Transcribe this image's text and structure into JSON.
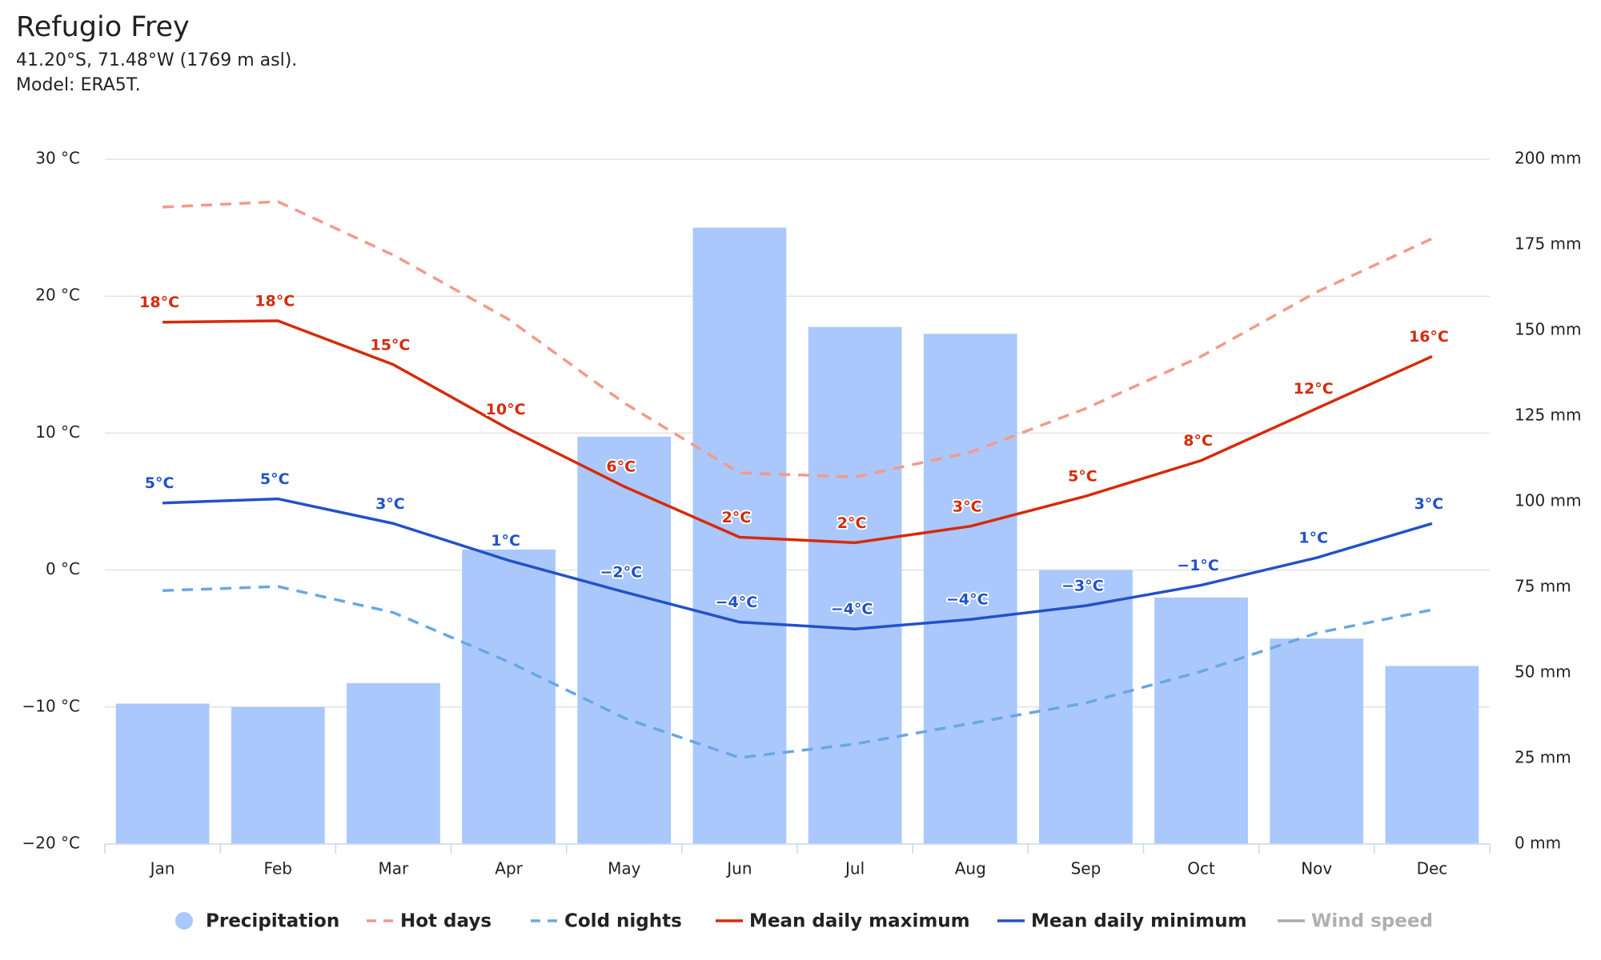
{
  "chart_data": {
    "type": "bar",
    "title": "Refugio Frey",
    "subtitle": [
      "41.20°S, 71.48°W (1769 m asl).",
      "Model: ERA5T."
    ],
    "categories": [
      "Jan",
      "Feb",
      "Mar",
      "Apr",
      "May",
      "Jun",
      "Jul",
      "Aug",
      "Sep",
      "Oct",
      "Nov",
      "Dec"
    ],
    "ylim": [
      -20,
      30
    ],
    "yticks": [
      {
        "value": -20,
        "label": "−20 °C"
      },
      {
        "value": -10,
        "label": "−10 °C"
      },
      {
        "value": 0,
        "label": "0 °C"
      },
      {
        "value": 10,
        "label": "10 °C"
      },
      {
        "value": 20,
        "label": "20 °C"
      },
      {
        "value": 30,
        "label": "30 °C"
      }
    ],
    "y2lim": [
      0,
      200
    ],
    "y2ticks": [
      {
        "value": 0,
        "label": "0 mm"
      },
      {
        "value": 25,
        "label": "25 mm"
      },
      {
        "value": 50,
        "label": "50 mm"
      },
      {
        "value": 75,
        "label": "75 mm"
      },
      {
        "value": 100,
        "label": "100 mm"
      },
      {
        "value": 125,
        "label": "125 mm"
      },
      {
        "value": 150,
        "label": "150 mm"
      },
      {
        "value": 175,
        "label": "175 mm"
      },
      {
        "value": 200,
        "label": "200 mm"
      }
    ],
    "grid": true,
    "series": [
      {
        "name": "Precipitation",
        "type": "bar",
        "axis": "y2",
        "color": "#aac8fc",
        "values": [
          41,
          40,
          47,
          86,
          119,
          180,
          151,
          149,
          80,
          72,
          60,
          52
        ]
      },
      {
        "name": "Hot days",
        "type": "line",
        "dash": true,
        "color": "#f4998a",
        "values": [
          26.5,
          26.9,
          23.0,
          18.3,
          12.2,
          7.1,
          6.8,
          8.6,
          11.8,
          15.6,
          20.3,
          24.2
        ]
      },
      {
        "name": "Cold nights",
        "type": "line",
        "dash": true,
        "color": "#6aa7e3",
        "values": [
          -1.5,
          -1.2,
          -3.1,
          -6.7,
          -10.8,
          -13.7,
          -12.7,
          -11.2,
          -9.7,
          -7.4,
          -4.6,
          -2.9
        ]
      },
      {
        "name": "Mean daily maximum",
        "type": "line",
        "color": "#d62b0a",
        "values": [
          18.1,
          18.2,
          15.0,
          10.3,
          6.1,
          2.4,
          2.0,
          3.2,
          5.4,
          8.0,
          11.8,
          15.6
        ],
        "value_labels": [
          "18°C",
          "18°C",
          "15°C",
          "10°C",
          "6°C",
          "2°C",
          "2°C",
          "3°C",
          "5°C",
          "8°C",
          "12°C",
          "16°C"
        ]
      },
      {
        "name": "Mean daily minimum",
        "type": "line",
        "color": "#2352c8",
        "values": [
          4.9,
          5.2,
          3.4,
          0.7,
          -1.6,
          -3.8,
          -4.3,
          -3.6,
          -2.6,
          -1.1,
          0.9,
          3.4
        ],
        "value_labels": [
          "5°C",
          "5°C",
          "3°C",
          "1°C",
          "−2°C",
          "−4°C",
          "−4°C",
          "−4°C",
          "−3°C",
          "−1°C",
          "1°C",
          "3°C"
        ]
      },
      {
        "name": "Wind speed",
        "type": "line",
        "hidden": true,
        "color": "#aaaaaa",
        "values": [
          null,
          null,
          null,
          null,
          null,
          null,
          null,
          null,
          null,
          null,
          null,
          null
        ]
      }
    ]
  }
}
